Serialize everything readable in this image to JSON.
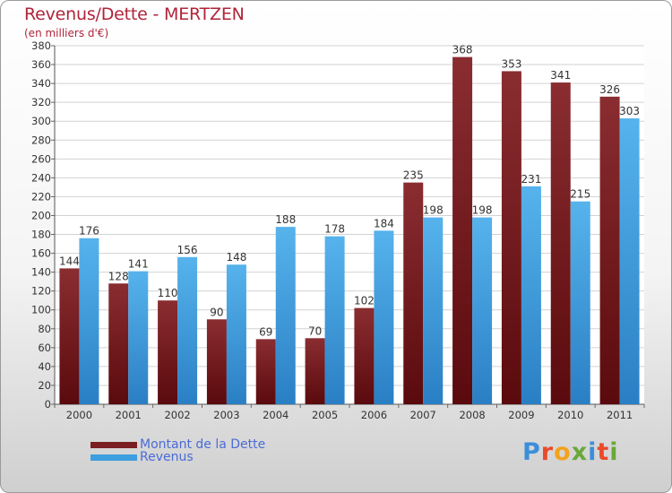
{
  "title": "Revenus/Dette - MERTZEN",
  "subtitle": "(en milliers d'€)",
  "brand": {
    "text": "Proxiti",
    "letter_colors": [
      "#3b8fd9",
      "#e94b2a",
      "#f2a21d",
      "#6aa83a",
      "#3b8fd9",
      "#e94b2a",
      "#6aa83a"
    ]
  },
  "colors": {
    "dette": "#7a1e22",
    "revenus": "#3d9ee0",
    "accent": "#b0243a"
  },
  "chart_data": {
    "type": "bar",
    "title": "Revenus/Dette - MERTZEN",
    "subtitle": "(en milliers d'€)",
    "categories": [
      "2000",
      "2001",
      "2002",
      "2003",
      "2004",
      "2005",
      "2006",
      "2007",
      "2008",
      "2009",
      "2010",
      "2011"
    ],
    "series": [
      {
        "name": "Montant de la Dette",
        "values": [
          144,
          128,
          110,
          90,
          69,
          70,
          102,
          235,
          368,
          353,
          341,
          326
        ]
      },
      {
        "name": "Revenus",
        "values": [
          176,
          141,
          156,
          148,
          188,
          178,
          184,
          198,
          198,
          231,
          215,
          303
        ]
      }
    ],
    "ylim": [
      0,
      380
    ],
    "y_ticks": [
      0,
      20,
      40,
      60,
      80,
      100,
      120,
      140,
      160,
      180,
      200,
      220,
      240,
      260,
      280,
      300,
      320,
      340,
      360,
      380
    ],
    "grid": true,
    "legend_position": "bottom-left"
  }
}
